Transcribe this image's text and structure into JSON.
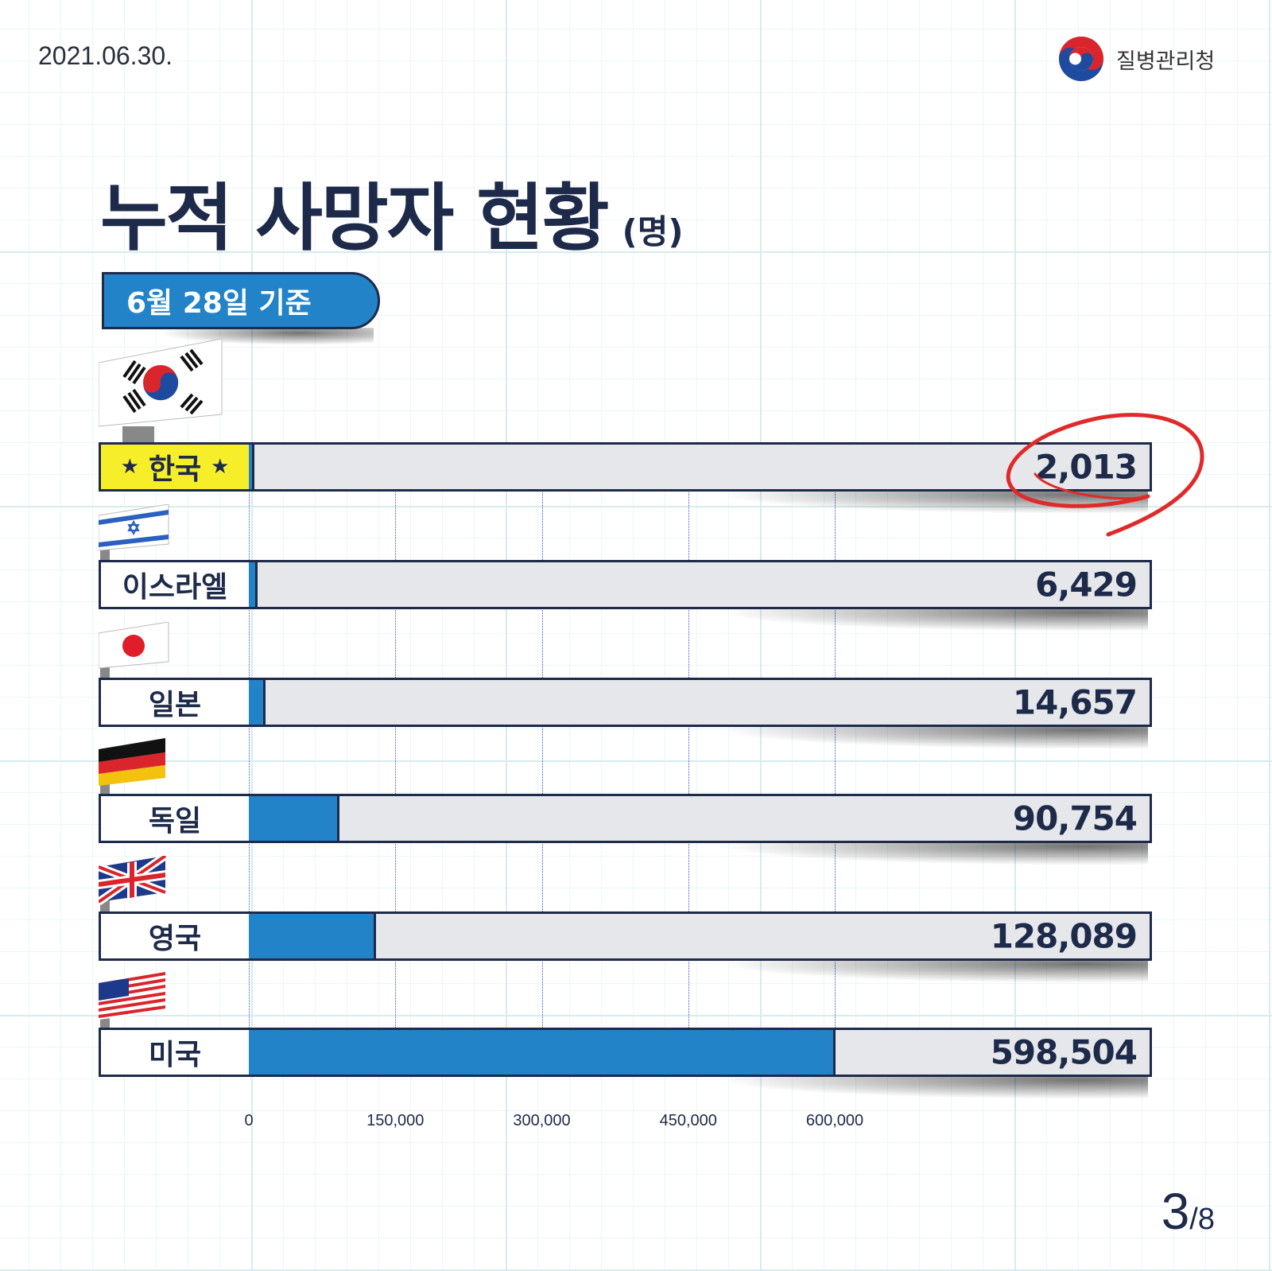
{
  "header": {
    "date": "2021.06.30.",
    "agency": "질병관리청"
  },
  "title": {
    "main": "누적 사망자 현황",
    "unit": "(명)"
  },
  "badge": "6월 28일 기준",
  "chart_data": {
    "type": "bar",
    "orientation": "horizontal",
    "title": "누적 사망자 현황",
    "unit": "(명)",
    "subtitle": "6월 28일 기준",
    "categories": [
      "한국",
      "이스라엘",
      "일본",
      "독일",
      "영국",
      "미국"
    ],
    "values": [
      2013,
      6429,
      14657,
      90754,
      128089,
      598504
    ],
    "value_labels": [
      "2,013",
      "6,429",
      "14,657",
      "90,754",
      "128,089",
      "598,504"
    ],
    "highlight": "한국",
    "xlim": [
      0,
      600000
    ],
    "xticks": [
      0,
      150000,
      300000,
      450000,
      600000
    ],
    "xtick_labels": [
      "0",
      "150,000",
      "300,000",
      "450,000",
      "600,000"
    ],
    "grid": true,
    "colors": {
      "bar": "#2283c8",
      "track": "#e6e7ea",
      "highlight_label": "#f7ee2a",
      "outline": "#1e2a4a",
      "circle": "#e02a2a"
    }
  },
  "pagination": {
    "current": "3",
    "total": "/8"
  }
}
